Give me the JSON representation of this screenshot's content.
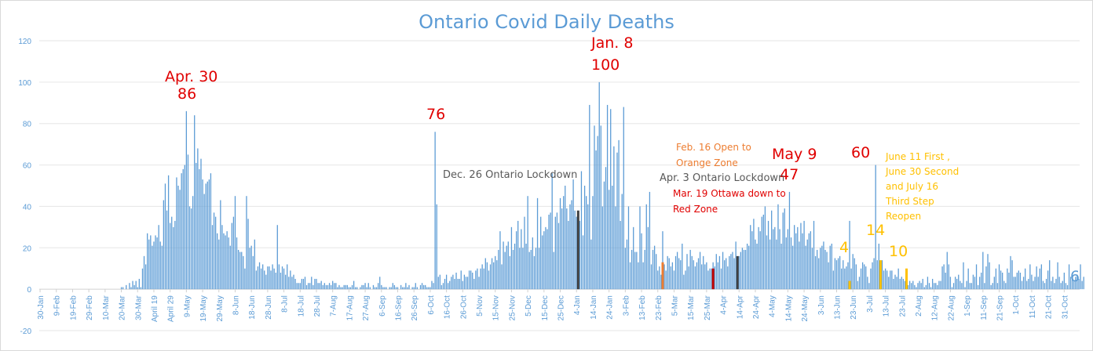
{
  "chart_data": {
    "type": "bar",
    "title": "Ontario Covid Daily Deaths",
    "ylim": [
      -20,
      120
    ],
    "yticks": [
      -20,
      0,
      20,
      40,
      60,
      80,
      100,
      120
    ],
    "grid": true,
    "legend": "none",
    "colors": {
      "bar": "#5b9bd5",
      "highlight_orange": "#ed7d31",
      "highlight_red": "#c00000",
      "highlight_dark": "#404040",
      "highlight_gold": "#ffc000"
    },
    "xticks": [
      "30-Jan",
      "9-Feb",
      "19-Feb",
      "29-Feb",
      "10-Mar",
      "20-Mar",
      "30-Mar",
      "April 19",
      "April 29",
      "9-May",
      "19-May",
      "29-May",
      "8-Jun",
      "18-Jun",
      "28-Jun",
      "8-Jul",
      "18-Jul",
      "28-Jul",
      "7-Aug",
      "17-Aug",
      "27-Aug",
      "6-Sep",
      "16-Sep",
      "26-Sep",
      "6-Oct",
      "16-Oct",
      "26-Oct",
      "5-Nov",
      "15-Nov",
      "25-Nov",
      "5-Dec",
      "15-Dec",
      "25-Dec",
      "4-Jan",
      "14-Jan",
      "24-Jan",
      "3-Feb",
      "13-Feb",
      "23-Feb",
      "5-Mar",
      "15-Mar",
      "25-Mar",
      "4-Apr",
      "14-Apr",
      "24-Apr",
      "4-May",
      "14-May",
      "24-May",
      "3-Jun",
      "13-Jun",
      "23-Jun",
      "3-Jul",
      "13-Jul",
      "23-Jul",
      "2-Aug",
      "12-Aug",
      "22-Aug",
      "1-Sep",
      "11-Sep",
      "21-Sep",
      "1-Oct",
      "11-Oct",
      "21-Oct",
      "31-Oct"
    ],
    "start_date": "2020-01-30",
    "values": [
      0,
      0,
      0,
      0,
      0,
      0,
      0,
      0,
      0,
      0,
      0,
      0,
      0,
      0,
      0,
      0,
      0,
      0,
      0,
      0,
      0,
      0,
      0,
      0,
      0,
      0,
      0,
      0,
      0,
      0,
      0,
      0,
      0,
      0,
      0,
      0,
      0,
      0,
      0,
      0,
      0,
      0,
      0,
      0,
      0,
      0,
      0,
      0,
      0,
      0,
      1,
      1,
      0,
      2,
      0,
      3,
      1,
      4,
      2,
      4,
      1,
      5,
      1,
      10,
      16,
      12,
      27,
      24,
      26,
      21,
      23,
      26,
      25,
      31,
      23,
      21,
      43,
      51,
      38,
      55,
      32,
      35,
      30,
      33,
      54,
      50,
      48,
      56,
      58,
      60,
      86,
      65,
      40,
      39,
      45,
      84,
      61,
      68,
      58,
      63,
      53,
      46,
      51,
      52,
      53,
      56,
      31,
      37,
      35,
      27,
      24,
      43,
      31,
      27,
      26,
      28,
      25,
      21,
      32,
      35,
      45,
      25,
      19,
      18,
      18,
      16,
      10,
      45,
      34,
      20,
      21,
      16,
      24,
      9,
      11,
      13,
      10,
      12,
      9,
      7,
      11,
      11,
      9,
      12,
      10,
      8,
      31,
      12,
      8,
      11,
      10,
      7,
      12,
      6,
      9,
      6,
      7,
      5,
      3,
      3,
      3,
      5,
      5,
      6,
      2,
      3,
      3,
      6,
      2,
      5,
      5,
      3,
      3,
      4,
      2,
      3,
      2,
      2,
      3,
      2,
      4,
      3,
      3,
      1,
      2,
      1,
      1,
      2,
      2,
      2,
      1,
      1,
      2,
      4,
      1,
      1,
      0,
      1,
      2,
      2,
      3,
      1,
      3,
      1,
      0,
      2,
      1,
      1,
      3,
      6,
      2,
      1,
      1,
      1,
      0,
      1,
      1,
      3,
      2,
      1,
      1,
      0,
      2,
      1,
      1,
      3,
      1,
      2,
      0,
      1,
      1,
      3,
      1,
      0,
      2,
      3,
      2,
      2,
      1,
      1,
      1,
      4,
      3,
      76,
      41,
      6,
      7,
      2,
      3,
      5,
      7,
      3,
      4,
      6,
      7,
      5,
      8,
      5,
      5,
      9,
      4,
      7,
      6,
      6,
      9,
      9,
      8,
      5,
      9,
      10,
      6,
      10,
      12,
      10,
      15,
      13,
      9,
      12,
      15,
      13,
      16,
      14,
      19,
      28,
      12,
      23,
      18,
      21,
      23,
      16,
      30,
      19,
      22,
      28,
      33,
      20,
      29,
      20,
      35,
      22,
      45,
      18,
      19,
      25,
      16,
      20,
      44,
      20,
      35,
      26,
      28,
      30,
      29,
      36,
      37,
      56,
      18,
      35,
      37,
      32,
      44,
      39,
      45,
      50,
      39,
      33,
      41,
      43,
      53,
      38,
      35,
      32,
      33,
      57,
      26,
      50,
      45,
      41,
      89,
      24,
      45,
      79,
      67,
      74,
      100,
      79,
      40,
      52,
      59,
      89,
      48,
      87,
      50,
      69,
      40,
      66,
      72,
      33,
      46,
      88,
      20,
      24,
      40,
      13,
      19,
      30,
      18,
      18,
      13,
      40,
      27,
      13,
      19,
      41,
      30,
      47,
      12,
      19,
      21,
      17,
      9,
      11,
      7,
      28,
      12,
      9,
      16,
      15,
      11,
      13,
      9,
      16,
      18,
      15,
      14,
      22,
      7,
      9,
      17,
      11,
      19,
      16,
      14,
      11,
      13,
      15,
      18,
      12,
      16,
      12,
      13,
      9,
      10,
      10,
      13,
      11,
      17,
      13,
      16,
      10,
      18,
      14,
      15,
      11,
      16,
      17,
      18,
      15,
      23,
      11,
      16,
      18,
      20,
      19,
      19,
      22,
      21,
      31,
      28,
      34,
      24,
      22,
      30,
      28,
      35,
      36,
      40,
      26,
      33,
      24,
      38,
      29,
      30,
      24,
      41,
      29,
      22,
      37,
      39,
      25,
      29,
      47,
      25,
      21,
      31,
      27,
      30,
      23,
      32,
      27,
      33,
      21,
      24,
      27,
      28,
      20,
      33,
      16,
      19,
      15,
      20,
      21,
      23,
      19,
      18,
      13,
      21,
      22,
      9,
      15,
      14,
      15,
      16,
      10,
      14,
      10,
      11,
      13,
      33,
      10,
      17,
      15,
      12,
      4,
      6,
      10,
      13,
      12,
      11,
      6,
      3,
      10,
      13,
      15,
      60,
      14,
      22,
      5,
      14,
      9,
      10,
      9,
      6,
      9,
      9,
      5,
      7,
      6,
      10,
      5,
      6,
      5,
      4,
      2,
      2,
      4,
      3,
      4,
      2,
      1,
      3,
      4,
      3,
      5,
      1,
      2,
      6,
      3,
      1,
      5,
      3,
      3,
      2,
      4,
      4,
      11,
      12,
      8,
      18,
      12,
      6,
      1,
      3,
      6,
      5,
      7,
      4,
      3,
      13,
      1,
      4,
      10,
      3,
      3,
      7,
      6,
      12,
      2,
      6,
      8,
      18,
      3,
      11,
      17,
      13,
      2,
      3,
      6,
      10,
      3,
      12,
      9,
      8,
      4,
      3,
      10,
      8,
      16,
      14,
      6,
      6,
      8,
      9,
      8,
      4,
      6,
      10,
      4,
      5,
      12,
      7,
      4,
      6,
      11,
      6,
      10,
      12,
      4,
      3,
      5,
      9,
      14,
      4,
      6,
      3,
      5,
      13,
      6,
      3,
      4,
      8,
      3,
      2,
      12,
      6,
      5,
      4,
      6,
      7,
      5,
      12,
      4,
      6
    ],
    "highlights": [
      {
        "date": "2020-12-26",
        "color": "highlight_dark",
        "value": 38
      },
      {
        "date": "2021-02-16",
        "color": "highlight_orange",
        "value": 13
      },
      {
        "date": "2021-03-19",
        "color": "highlight_red",
        "value": 10
      },
      {
        "date": "2021-04-03",
        "color": "highlight_dark",
        "value": 16
      },
      {
        "date": "2021-06-11",
        "color": "highlight_gold",
        "value": 4
      },
      {
        "date": "2021-06-30",
        "color": "highlight_gold",
        "value": 14
      },
      {
        "date": "2021-07-16",
        "color": "highlight_gold",
        "value": 10
      }
    ],
    "annotations": {
      "apr30_date": "Apr. 30",
      "apr30_value": "86",
      "sep_peak": "76",
      "jan8_date": "Jan. 8",
      "jan8_value": "100",
      "may9_date": "May 9",
      "may9_value": "47",
      "jun_peak": "60",
      "dec26": "Dec. 26 Ontario Lockdown",
      "feb16_line1": "Feb. 16 Open to",
      "feb16_line2": "Orange Zone",
      "apr3": "Apr. 3 Ontario Lockdown",
      "mar19_line1": "Mar. 19 Ottawa down to",
      "mar19_line2": "Red Zone",
      "jun11_value": "4",
      "jun30_value": "14",
      "jul16_value": "10",
      "reopen_line1": "June 11 First ,",
      "reopen_line2": "June 30 Second",
      "reopen_line3": "and July 16",
      "reopen_line4": "Third Step",
      "reopen_line5": "Reopen",
      "end_value": "6"
    }
  }
}
